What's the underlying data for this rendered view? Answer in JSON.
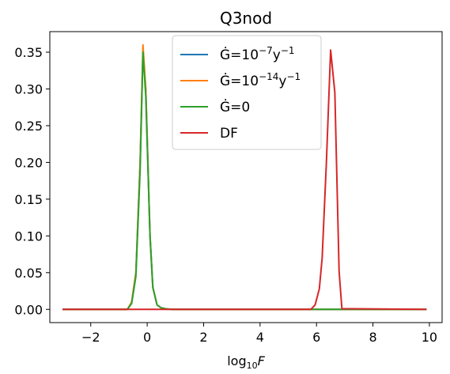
{
  "chart_data": {
    "type": "line",
    "title": "Q3nod",
    "xlabel": {
      "base": "log",
      "sub": "10",
      "var": "F"
    },
    "ylabel": "",
    "xlim": [
      -3.45,
      10.45
    ],
    "ylim": [
      -0.018,
      0.378
    ],
    "xticks": [
      -2,
      0,
      2,
      4,
      6,
      8,
      10
    ],
    "xtick_labels": [
      "−2",
      "0",
      "2",
      "4",
      "6",
      "8",
      "10"
    ],
    "yticks": [
      0.0,
      0.05,
      0.1,
      0.15,
      0.2,
      0.25,
      0.3,
      0.35
    ],
    "ytick_labels": [
      "0.00",
      "0.05",
      "0.10",
      "0.15",
      "0.20",
      "0.25",
      "0.30",
      "0.35"
    ],
    "grid": false,
    "legend_position": "top-center",
    "series": [
      {
        "name": "Ġ=10^-7 y^-1",
        "legend": {
          "pre": "Ġ=10",
          "sup": "−7",
          "mid": "y",
          "sup2": "−1"
        },
        "color": "#1f77b4",
        "x": [
          -3,
          -0.7,
          -0.55,
          -0.4,
          -0.25,
          -0.15,
          -0.05,
          0.1,
          0.2,
          0.35,
          0.5,
          0.7,
          0.9,
          9.9
        ],
        "y": [
          0.0,
          0.0,
          0.01,
          0.05,
          0.2,
          0.35,
          0.3,
          0.1,
          0.03,
          0.006,
          0.002,
          0.0005,
          0.0,
          0.0
        ]
      },
      {
        "name": "Ġ=10^-14 y^-1",
        "legend": {
          "pre": "Ġ=10",
          "sup": "−14",
          "mid": "y",
          "sup2": "−1"
        },
        "color": "#ff7f0e",
        "x": [
          -3,
          -0.7,
          -0.55,
          -0.4,
          -0.25,
          -0.15,
          -0.05,
          0.1,
          0.2,
          0.35,
          0.5,
          0.7,
          0.9,
          9.9
        ],
        "y": [
          0.0,
          0.0,
          0.01,
          0.05,
          0.2,
          0.36,
          0.3,
          0.1,
          0.03,
          0.006,
          0.002,
          0.0005,
          0.0,
          0.0
        ]
      },
      {
        "name": "Ġ=0",
        "legend": {
          "pre": "Ġ=0",
          "sup": "",
          "mid": "",
          "sup2": ""
        },
        "color": "#2ca02c",
        "x": [
          -3,
          -0.7,
          -0.55,
          -0.4,
          -0.25,
          -0.15,
          -0.05,
          0.1,
          0.2,
          0.35,
          0.5,
          0.7,
          0.9,
          9.9
        ],
        "y": [
          0.0,
          0.0,
          0.008,
          0.045,
          0.19,
          0.35,
          0.29,
          0.1,
          0.03,
          0.006,
          0.002,
          0.0005,
          0.0,
          0.0
        ]
      },
      {
        "name": "DF",
        "legend": {
          "pre": "DF",
          "sup": "",
          "mid": "",
          "sup2": ""
        },
        "color": "#d62728",
        "x": [
          -3,
          5.8,
          5.95,
          6.1,
          6.2,
          6.35,
          6.5,
          6.65,
          6.8,
          6.9,
          9.9
        ],
        "y": [
          0.0,
          0.0,
          0.006,
          0.028,
          0.07,
          0.2,
          0.353,
          0.295,
          0.052,
          0.001,
          0.0
        ]
      }
    ]
  }
}
